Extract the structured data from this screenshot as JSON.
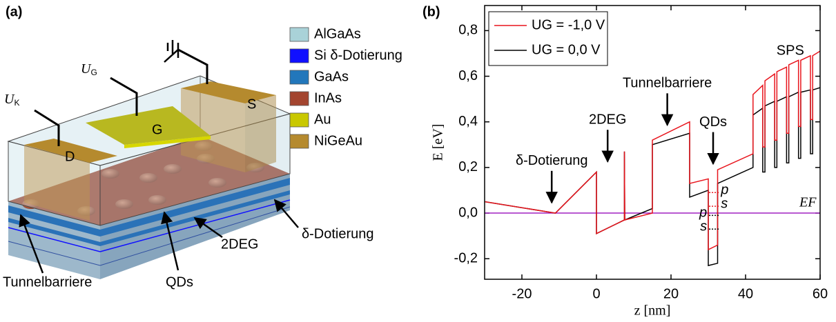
{
  "panel_a": {
    "panel_label": "(a)",
    "legend": [
      {
        "label": "AlGaAs",
        "color": "#a9d2d8"
      },
      {
        "label": "Si δ-Dotierung",
        "color": "#1010ff"
      },
      {
        "label": "GaAs",
        "color": "#2277bb"
      },
      {
        "label": "InAs",
        "color": "#a3452f"
      },
      {
        "label": "Au",
        "color": "#c9c800"
      },
      {
        "label": "NiGeAu",
        "color": "#b58a2e"
      }
    ],
    "contacts": [
      {
        "symbol": "U",
        "sub": "K"
      },
      {
        "symbol": "U",
        "sub": "G"
      }
    ],
    "electrodes": [
      "D",
      "G",
      "S"
    ],
    "callouts": [
      "Tunnelbarriere",
      "QDs",
      "2DEG",
      "δ-Dotierung"
    ]
  },
  "chart_data": {
    "type": "line",
    "panel_label": "(b)",
    "xlabel": "z [nm]",
    "ylabel": "E [eV]",
    "xlim": [
      -30,
      60
    ],
    "ylim": [
      -0.29,
      0.91
    ],
    "xticks": [
      -20,
      0,
      20,
      40,
      60
    ],
    "yticks": [
      {
        "value": -0.2,
        "label": "-0,2"
      },
      {
        "value": 0,
        "label": "0,0"
      },
      {
        "value": 0.2,
        "label": "0,2"
      },
      {
        "value": 0.4,
        "label": "0,4"
      },
      {
        "value": 0.6,
        "label": "0,6"
      },
      {
        "value": 0.8,
        "label": "0,8"
      }
    ],
    "legend": "upper left",
    "series": [
      {
        "name": "UG = -1,0 V",
        "color": "#e8141c",
        "x": [
          -30,
          -11,
          0,
          0,
          7.5,
          7.5,
          7.6,
          15,
          15,
          25,
          25,
          30,
          30,
          32.5,
          32.5,
          42,
          42,
          44.6,
          44.6,
          45.2,
          45.2,
          47.8,
          47.8,
          48.4,
          48.4,
          51,
          51,
          51.6,
          51.6,
          54.2,
          54.2,
          54.8,
          54.8,
          57.4,
          57.4,
          58,
          58,
          60
        ],
        "values": [
          0.05,
          0.0,
          0.18,
          -0.09,
          -0.03,
          0.27,
          -0.03,
          0.0,
          0.32,
          0.4,
          0.13,
          0.15,
          -0.16,
          -0.14,
          0.19,
          0.26,
          0.52,
          0.56,
          0.29,
          0.29,
          0.58,
          0.61,
          0.32,
          0.32,
          0.62,
          0.64,
          0.35,
          0.35,
          0.65,
          0.67,
          0.38,
          0.38,
          0.67,
          0.69,
          0.41,
          0.41,
          0.69,
          0.71
        ]
      },
      {
        "name": "UG = 0,0 V",
        "color": "#000000",
        "x": [
          -30,
          -11,
          0,
          0,
          7.5,
          7.5,
          7.6,
          15,
          15,
          25,
          25,
          30,
          30,
          32.5,
          32.5,
          42,
          42,
          44.6,
          44.6,
          45.2,
          45.2,
          47.8,
          47.8,
          48.4,
          48.4,
          51,
          51,
          51.6,
          51.6,
          54.2,
          54.2,
          54.8,
          54.8,
          57.4,
          57.4,
          58,
          58,
          60
        ],
        "values": [
          0.05,
          0.0,
          0.18,
          -0.09,
          -0.03,
          0.27,
          -0.03,
          0.02,
          0.3,
          0.35,
          0.07,
          0.1,
          -0.23,
          -0.22,
          0.13,
          0.2,
          0.43,
          0.46,
          0.18,
          0.18,
          0.47,
          0.49,
          0.2,
          0.2,
          0.49,
          0.51,
          0.22,
          0.22,
          0.51,
          0.53,
          0.24,
          0.24,
          0.53,
          0.54,
          0.26,
          0.26,
          0.54,
          0.55
        ]
      }
    ],
    "fermi": {
      "label": "EF",
      "value": 0,
      "color": "#a020c0"
    },
    "levels": [
      {
        "label": "p",
        "value": 0.09,
        "color": "#e8141c",
        "xrange": [
          30.2,
          33
        ],
        "side": "right"
      },
      {
        "label": "s",
        "value": 0.03,
        "color": "#e8141c",
        "xrange": [
          30.2,
          33
        ],
        "side": "right"
      },
      {
        "label": "p",
        "value": -0.01,
        "color": "#000000",
        "xrange": [
          30.2,
          33
        ],
        "side": "left"
      },
      {
        "label": "s",
        "value": -0.07,
        "color": "#000000",
        "xrange": [
          30.2,
          33
        ],
        "side": "left"
      }
    ],
    "annotations": [
      {
        "text": "δ-Dotierung",
        "x": -12,
        "y": 0.04,
        "arrow": true
      },
      {
        "text": "2DEG",
        "x": 3,
        "y": 0.22,
        "arrow": true
      },
      {
        "text": "Tunnelbarriere",
        "x": 19,
        "y": 0.38,
        "arrow": true
      },
      {
        "text": "QDs",
        "x": 31.3,
        "y": 0.21,
        "arrow": true
      },
      {
        "text": "SPS",
        "x": 52,
        "y": 0.71,
        "arrow": false
      }
    ]
  }
}
